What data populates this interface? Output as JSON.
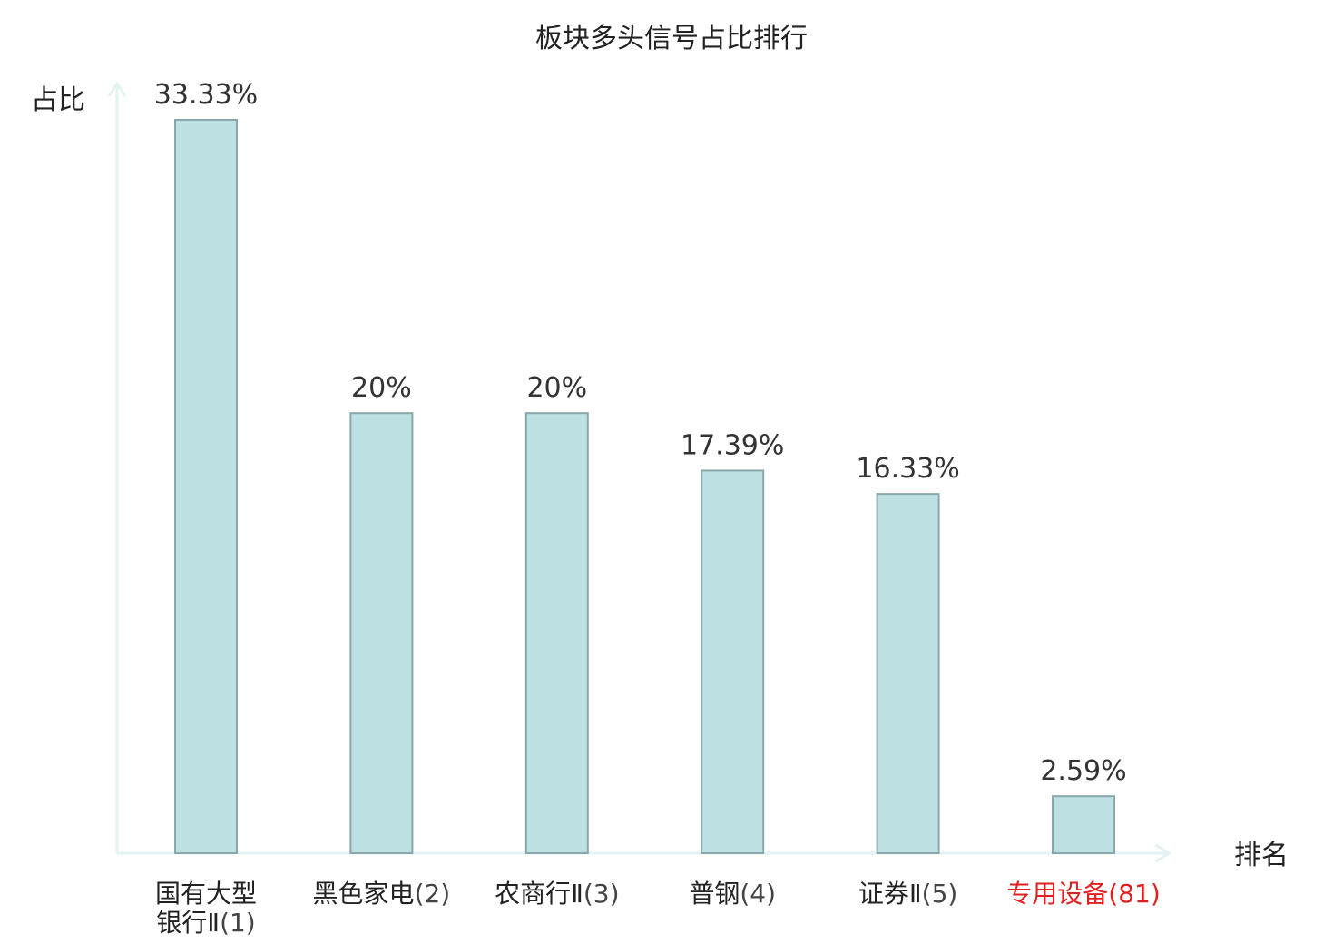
{
  "chart_data": {
    "type": "bar",
    "title": "板块多头信号占比排行",
    "ylabel": "占比",
    "xlabel": "排名",
    "ylim": [
      0,
      35
    ],
    "grid": false,
    "categories": [
      {
        "name": "国有大型银行Ⅱ",
        "rank": "(1)",
        "lines": [
          "国有大型",
          "银行Ⅱ"
        ],
        "highlight": false
      },
      {
        "name": "黑色家电",
        "rank": "(2)",
        "lines": [
          "黑色家电"
        ],
        "highlight": false
      },
      {
        "name": "农商行Ⅱ",
        "rank": "(3)",
        "lines": [
          "农商行Ⅱ"
        ],
        "highlight": false
      },
      {
        "name": "普钢",
        "rank": "(4)",
        "lines": [
          "普钢"
        ],
        "highlight": false
      },
      {
        "name": "证券Ⅱ",
        "rank": "(5)",
        "lines": [
          "证券Ⅱ"
        ],
        "highlight": false
      },
      {
        "name": "专用设备",
        "rank": "(81)",
        "lines": [
          "专用设备"
        ],
        "highlight": true
      }
    ],
    "values": [
      33.33,
      20,
      20,
      17.39,
      16.33,
      2.59
    ],
    "value_labels": [
      "33.33%",
      "20%",
      "20%",
      "17.39%",
      "16.33%",
      "2.59%"
    ]
  },
  "colors": {
    "bar_fill": "#bde0e3",
    "bar_stroke": "#8aa7a9",
    "axis": "#e2f3f1",
    "text": "#222222",
    "highlight": "#e02020",
    "rank_text": "#444444"
  }
}
